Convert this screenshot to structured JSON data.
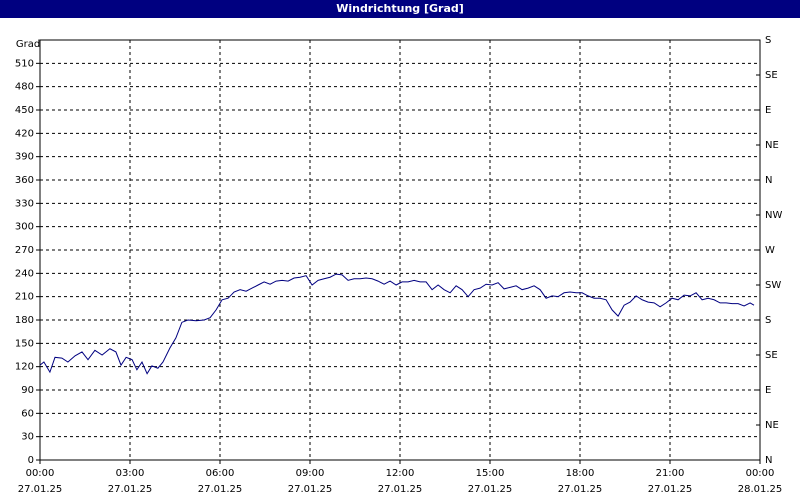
{
  "chart_data": {
    "type": "line",
    "title": "Windrichtung [Grad]",
    "y_label": "Grad",
    "xlim": [
      0,
      24
    ],
    "ylim": [
      0,
      540
    ],
    "y2lim": [
      0,
      540
    ],
    "xticks": [
      {
        "value": 0,
        "label": "00:00",
        "date": "27.01.25"
      },
      {
        "value": 3,
        "label": "03:00",
        "date": "27.01.25"
      },
      {
        "value": 6,
        "label": "06:00",
        "date": "27.01.25"
      },
      {
        "value": 9,
        "label": "09:00",
        "date": "27.01.25"
      },
      {
        "value": 12,
        "label": "12:00",
        "date": "27.01.25"
      },
      {
        "value": 15,
        "label": "15:00",
        "date": "27.01.25"
      },
      {
        "value": 18,
        "label": "18:00",
        "date": "27.01.25"
      },
      {
        "value": 21,
        "label": "21:00",
        "date": "27.01.25"
      },
      {
        "value": 24,
        "label": "00:00",
        "date": "28.01.25"
      }
    ],
    "yticks": [
      0,
      30,
      60,
      90,
      120,
      150,
      180,
      210,
      240,
      270,
      300,
      330,
      360,
      390,
      420,
      450,
      480,
      510
    ],
    "y2ticks": [
      {
        "value": 0,
        "label": "N"
      },
      {
        "value": 45,
        "label": "NE"
      },
      {
        "value": 90,
        "label": "E"
      },
      {
        "value": 135,
        "label": "SE"
      },
      {
        "value": 180,
        "label": "S"
      },
      {
        "value": 225,
        "label": "SW"
      },
      {
        "value": 270,
        "label": "W"
      },
      {
        "value": 315,
        "label": "NW"
      },
      {
        "value": 360,
        "label": "N"
      },
      {
        "value": 405,
        "label": "NE"
      },
      {
        "value": 450,
        "label": "E"
      },
      {
        "value": 495,
        "label": "SE"
      },
      {
        "value": 540,
        "label": "S"
      }
    ],
    "grid": true,
    "series": [
      {
        "name": "Windrichtung",
        "color": "#000080",
        "x": [
          0,
          0.13,
          0.33,
          0.5,
          0.73,
          0.93,
          1.17,
          1.4,
          1.6,
          1.83,
          2.07,
          2.33,
          2.53,
          2.7,
          2.87,
          3.07,
          3.23,
          3.4,
          3.57,
          3.73,
          3.93,
          4.1,
          4.33,
          4.53,
          4.73,
          4.93,
          5.2,
          5.47,
          5.67,
          5.87,
          6.07,
          6.27,
          6.47,
          6.67,
          6.87,
          7.07,
          7.27,
          7.47,
          7.67,
          7.87,
          8.07,
          8.27,
          8.47,
          8.67,
          8.87,
          9.07,
          9.27,
          9.47,
          9.67,
          9.87,
          10.07,
          10.27,
          10.47,
          10.67,
          10.87,
          11.07,
          11.27,
          11.47,
          11.67,
          11.87,
          12.07,
          12.27,
          12.47,
          12.67,
          12.87,
          13.07,
          13.27,
          13.47,
          13.67,
          13.87,
          14.07,
          14.27,
          14.47,
          14.67,
          14.87,
          15.07,
          15.27,
          15.47,
          15.67,
          15.87,
          16.07,
          16.27,
          16.47,
          16.67,
          16.87,
          17.07,
          17.27,
          17.47,
          17.67,
          17.87,
          18.07,
          18.27,
          18.47,
          18.67,
          18.87,
          19.07,
          19.27,
          19.47,
          19.67,
          19.87,
          20.07,
          20.27,
          20.47,
          20.67,
          20.87,
          21.07,
          21.27,
          21.47,
          21.67,
          21.87,
          22.07,
          22.27,
          22.47,
          22.67,
          22.87,
          23.07,
          23.27,
          23.47,
          23.67,
          23.8
        ],
        "values": [
          122,
          126,
          113,
          132,
          131,
          126,
          134,
          139,
          129,
          141,
          135,
          143,
          139,
          122,
          132,
          129,
          116,
          126,
          111,
          121,
          118,
          126,
          144,
          157,
          177,
          180,
          179,
          180,
          183,
          193,
          206,
          208,
          216,
          219,
          217,
          221,
          225,
          229,
          226,
          230,
          231,
          230,
          234,
          235,
          237,
          225,
          231,
          233,
          235,
          239,
          238,
          231,
          233,
          233,
          234,
          233,
          230,
          226,
          230,
          225,
          229,
          229,
          231,
          229,
          229,
          219,
          225,
          219,
          215,
          224,
          219,
          210,
          219,
          221,
          226,
          225,
          228,
          220,
          222,
          224,
          219,
          221,
          224,
          219,
          208,
          211,
          210,
          215,
          216,
          215,
          215,
          211,
          208,
          208,
          206,
          193,
          185,
          199,
          203,
          211,
          206,
          203,
          202,
          197,
          202,
          208,
          206,
          212,
          211,
          215,
          206,
          208,
          206,
          202,
          202,
          201,
          201,
          198,
          202,
          199
        ]
      }
    ]
  }
}
